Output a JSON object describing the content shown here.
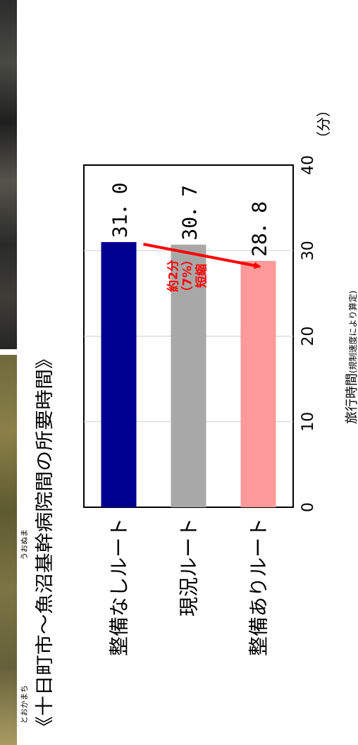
{
  "title": {
    "text": "《十日町市～魚沼基幹病院間の所要時間》",
    "ruby_left": "とおかまち",
    "ruby_right": "うおぬま"
  },
  "annotation": {
    "lines": [
      "約2分",
      "（7%）",
      "短縮"
    ],
    "color": "#ff0000"
  },
  "chart_data": {
    "type": "bar",
    "orientation": "horizontal",
    "categories": [
      "整備なしルート",
      "現況ルート",
      "整備ありルート"
    ],
    "values": [
      31.0,
      30.7,
      28.8
    ],
    "value_labels": [
      "31．0",
      "30．7",
      "28．8"
    ],
    "colors": [
      "#000090",
      "#a8a8a8",
      "#ff9a9a"
    ],
    "xlim": [
      0,
      40
    ],
    "ticks": [
      0,
      10,
      20,
      30,
      40
    ],
    "unit": "（分）",
    "xlabel_main": "旅行時間",
    "xlabel_note": "(規制速度により算定)",
    "grid": true
  }
}
